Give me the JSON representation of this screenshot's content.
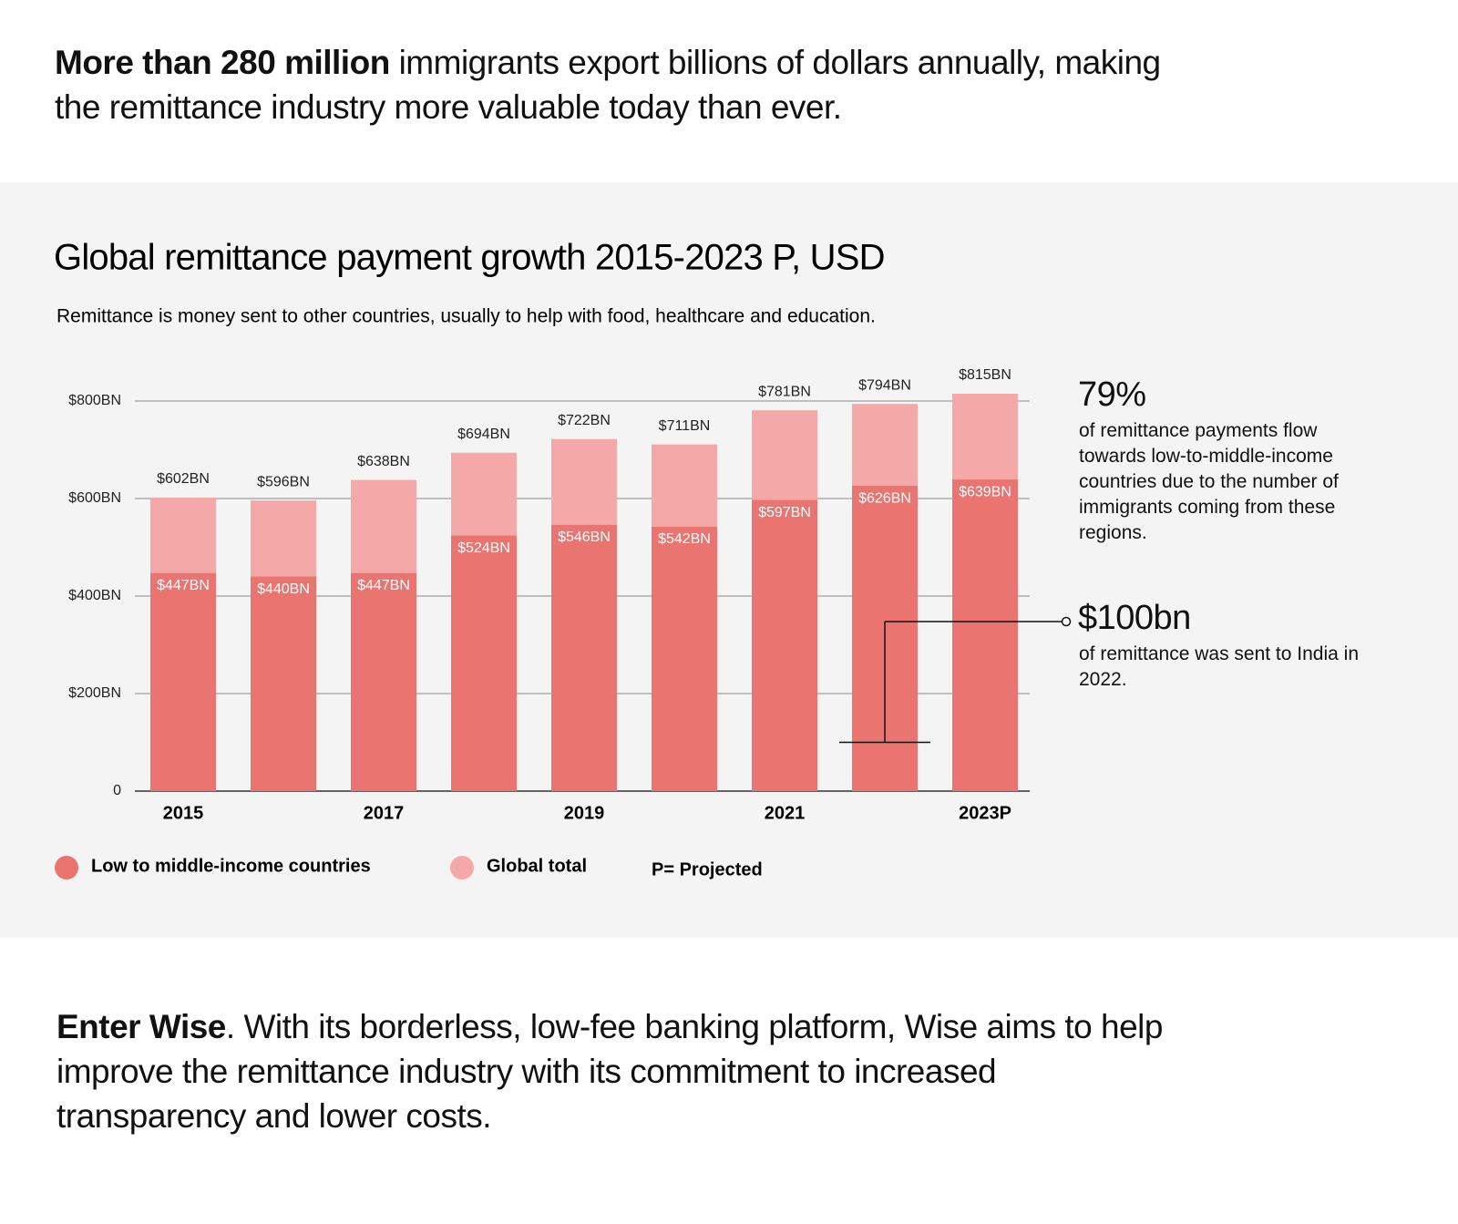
{
  "header": {
    "bold": "More than 280 million",
    "text": "immigrants export billions of dollars annually, making the remittance industry more valuable today than ever."
  },
  "chart_data": {
    "type": "bar",
    "title": "Global remittance payment growth 2015-2023 P, USD",
    "subtitle": "Remittance is money sent to other countries, usually to help with food, healthcare and education.",
    "categories": [
      "2015",
      null,
      "2017",
      null,
      "2019",
      null,
      "2021",
      null,
      "2023P"
    ],
    "series": [
      {
        "name": "Low to middle-income countries",
        "color": "#ea7470",
        "values": [
          447,
          440,
          447,
          524,
          546,
          542,
          597,
          626,
          639
        ],
        "value_labels": [
          "$447BN",
          "$440BN",
          "$447BN",
          "$524BN",
          "$546BN",
          "$542BN",
          "$597BN",
          "$626BN",
          "$639BN"
        ]
      },
      {
        "name": "Global total",
        "color": "#f4a9a8",
        "values": [
          602,
          596,
          638,
          694,
          722,
          711,
          781,
          794,
          815
        ],
        "value_labels": [
          "$602BN",
          "$596BN",
          "$638BN",
          "$694BN",
          "$722BN",
          "$711BN",
          "$781BN",
          "$794BN",
          "$815BN"
        ]
      }
    ],
    "ylim": [
      0,
      800
    ],
    "yticks": [
      0,
      {
        "value": 200,
        "label": "$200BN"
      },
      {
        "value": 400,
        "label": "$400BN"
      },
      {
        "value": 600,
        "label": "$600BN"
      },
      {
        "value": 800,
        "label": "$800BN"
      }
    ],
    "grid": true,
    "legend_note": "P= Projected",
    "annotations": [
      {
        "text": "79%",
        "detail": "of remittance payments flow towards low-to-middle-income countries due to the number of immigrants coming from these regions."
      },
      {
        "text": "$100bn",
        "detail": "of remittance was sent to India in 2022.",
        "value": 100
      }
    ]
  },
  "footer": {
    "bold": "Enter Wise",
    "text": ". With its borderless, low-fee banking platform, Wise aims to help improve the remittance industry with its commitment to increased transparency and lower costs."
  }
}
